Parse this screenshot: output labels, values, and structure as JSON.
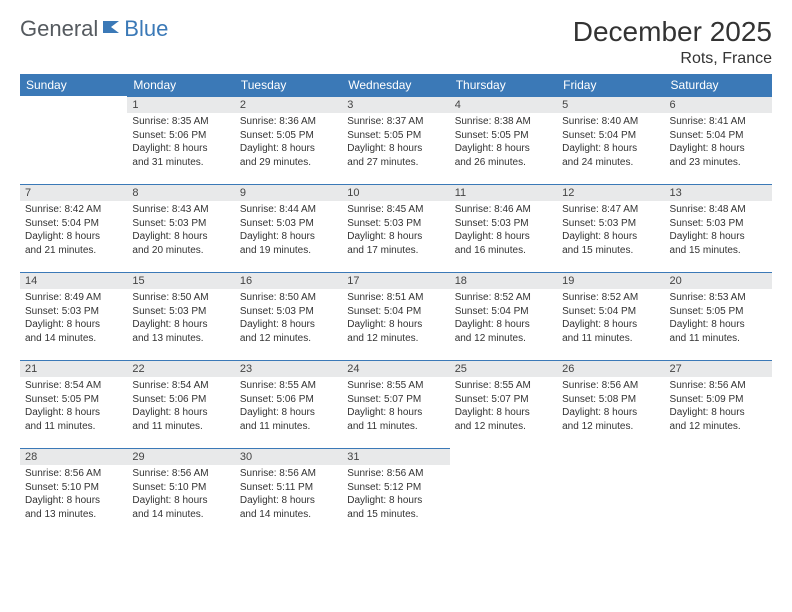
{
  "logo": {
    "part1": "General",
    "part2": "Blue"
  },
  "header": {
    "title": "December 2025",
    "location": "Rots, France"
  },
  "style": {
    "accent": "#3b79b7",
    "daybar_bg": "#e8e9ea",
    "daybar_border": "#3b79b7",
    "text_color": "#333333",
    "logo_gray": "#555a5f",
    "background": "#ffffff",
    "title_fontsize": 28,
    "subtitle_fontsize": 16,
    "header_fontsize": 12,
    "day_fontsize": 11,
    "info_fontsize": 10
  },
  "weekdays": [
    "Sunday",
    "Monday",
    "Tuesday",
    "Wednesday",
    "Thursday",
    "Friday",
    "Saturday"
  ],
  "rows": [
    [
      null,
      {
        "n": "1",
        "sr": "8:35 AM",
        "ss": "5:06 PM",
        "dh": "8",
        "dm": "31"
      },
      {
        "n": "2",
        "sr": "8:36 AM",
        "ss": "5:05 PM",
        "dh": "8",
        "dm": "29"
      },
      {
        "n": "3",
        "sr": "8:37 AM",
        "ss": "5:05 PM",
        "dh": "8",
        "dm": "27"
      },
      {
        "n": "4",
        "sr": "8:38 AM",
        "ss": "5:05 PM",
        "dh": "8",
        "dm": "26"
      },
      {
        "n": "5",
        "sr": "8:40 AM",
        "ss": "5:04 PM",
        "dh": "8",
        "dm": "24"
      },
      {
        "n": "6",
        "sr": "8:41 AM",
        "ss": "5:04 PM",
        "dh": "8",
        "dm": "23"
      }
    ],
    [
      {
        "n": "7",
        "sr": "8:42 AM",
        "ss": "5:04 PM",
        "dh": "8",
        "dm": "21"
      },
      {
        "n": "8",
        "sr": "8:43 AM",
        "ss": "5:03 PM",
        "dh": "8",
        "dm": "20"
      },
      {
        "n": "9",
        "sr": "8:44 AM",
        "ss": "5:03 PM",
        "dh": "8",
        "dm": "19"
      },
      {
        "n": "10",
        "sr": "8:45 AM",
        "ss": "5:03 PM",
        "dh": "8",
        "dm": "17"
      },
      {
        "n": "11",
        "sr": "8:46 AM",
        "ss": "5:03 PM",
        "dh": "8",
        "dm": "16"
      },
      {
        "n": "12",
        "sr": "8:47 AM",
        "ss": "5:03 PM",
        "dh": "8",
        "dm": "15"
      },
      {
        "n": "13",
        "sr": "8:48 AM",
        "ss": "5:03 PM",
        "dh": "8",
        "dm": "15"
      }
    ],
    [
      {
        "n": "14",
        "sr": "8:49 AM",
        "ss": "5:03 PM",
        "dh": "8",
        "dm": "14"
      },
      {
        "n": "15",
        "sr": "8:50 AM",
        "ss": "5:03 PM",
        "dh": "8",
        "dm": "13"
      },
      {
        "n": "16",
        "sr": "8:50 AM",
        "ss": "5:03 PM",
        "dh": "8",
        "dm": "12"
      },
      {
        "n": "17",
        "sr": "8:51 AM",
        "ss": "5:04 PM",
        "dh": "8",
        "dm": "12"
      },
      {
        "n": "18",
        "sr": "8:52 AM",
        "ss": "5:04 PM",
        "dh": "8",
        "dm": "12"
      },
      {
        "n": "19",
        "sr": "8:52 AM",
        "ss": "5:04 PM",
        "dh": "8",
        "dm": "11"
      },
      {
        "n": "20",
        "sr": "8:53 AM",
        "ss": "5:05 PM",
        "dh": "8",
        "dm": "11"
      }
    ],
    [
      {
        "n": "21",
        "sr": "8:54 AM",
        "ss": "5:05 PM",
        "dh": "8",
        "dm": "11"
      },
      {
        "n": "22",
        "sr": "8:54 AM",
        "ss": "5:06 PM",
        "dh": "8",
        "dm": "11"
      },
      {
        "n": "23",
        "sr": "8:55 AM",
        "ss": "5:06 PM",
        "dh": "8",
        "dm": "11"
      },
      {
        "n": "24",
        "sr": "8:55 AM",
        "ss": "5:07 PM",
        "dh": "8",
        "dm": "11"
      },
      {
        "n": "25",
        "sr": "8:55 AM",
        "ss": "5:07 PM",
        "dh": "8",
        "dm": "12"
      },
      {
        "n": "26",
        "sr": "8:56 AM",
        "ss": "5:08 PM",
        "dh": "8",
        "dm": "12"
      },
      {
        "n": "27",
        "sr": "8:56 AM",
        "ss": "5:09 PM",
        "dh": "8",
        "dm": "12"
      }
    ],
    [
      {
        "n": "28",
        "sr": "8:56 AM",
        "ss": "5:10 PM",
        "dh": "8",
        "dm": "13"
      },
      {
        "n": "29",
        "sr": "8:56 AM",
        "ss": "5:10 PM",
        "dh": "8",
        "dm": "14"
      },
      {
        "n": "30",
        "sr": "8:56 AM",
        "ss": "5:11 PM",
        "dh": "8",
        "dm": "14"
      },
      {
        "n": "31",
        "sr": "8:56 AM",
        "ss": "5:12 PM",
        "dh": "8",
        "dm": "15"
      },
      null,
      null,
      null
    ]
  ],
  "labels": {
    "sunrise": "Sunrise:",
    "sunset": "Sunset:",
    "daylight": "Daylight:",
    "hours": "hours",
    "and": "and",
    "minutes": "minutes."
  }
}
